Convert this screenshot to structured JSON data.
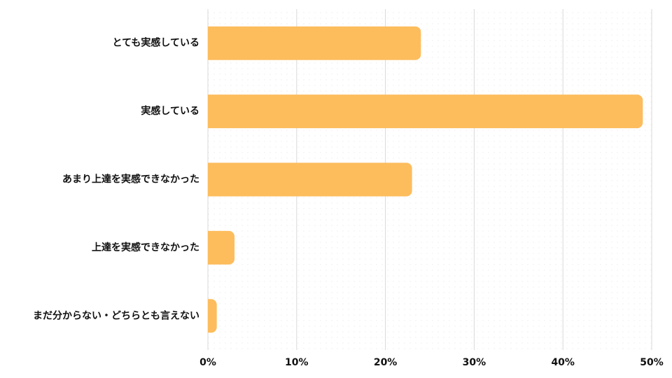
{
  "chart_data": {
    "type": "barh",
    "categories": [
      "とても実感している",
      "実感している",
      "あまり上達を実感できなかった",
      "上達を実感できなかった",
      "まだ分からない・どちらとも言えない"
    ],
    "values": [
      24,
      49,
      23,
      3,
      1
    ],
    "color": "#fdbd5d",
    "xlim": [
      0,
      50
    ],
    "xticks": [
      {
        "value": 0,
        "label": "0%"
      },
      {
        "value": 10,
        "label": "10%"
      },
      {
        "value": 20,
        "label": "20%"
      },
      {
        "value": 30,
        "label": "30%"
      },
      {
        "value": 40,
        "label": "40%"
      },
      {
        "value": 50,
        "label": "50%"
      }
    ],
    "grid": true
  }
}
